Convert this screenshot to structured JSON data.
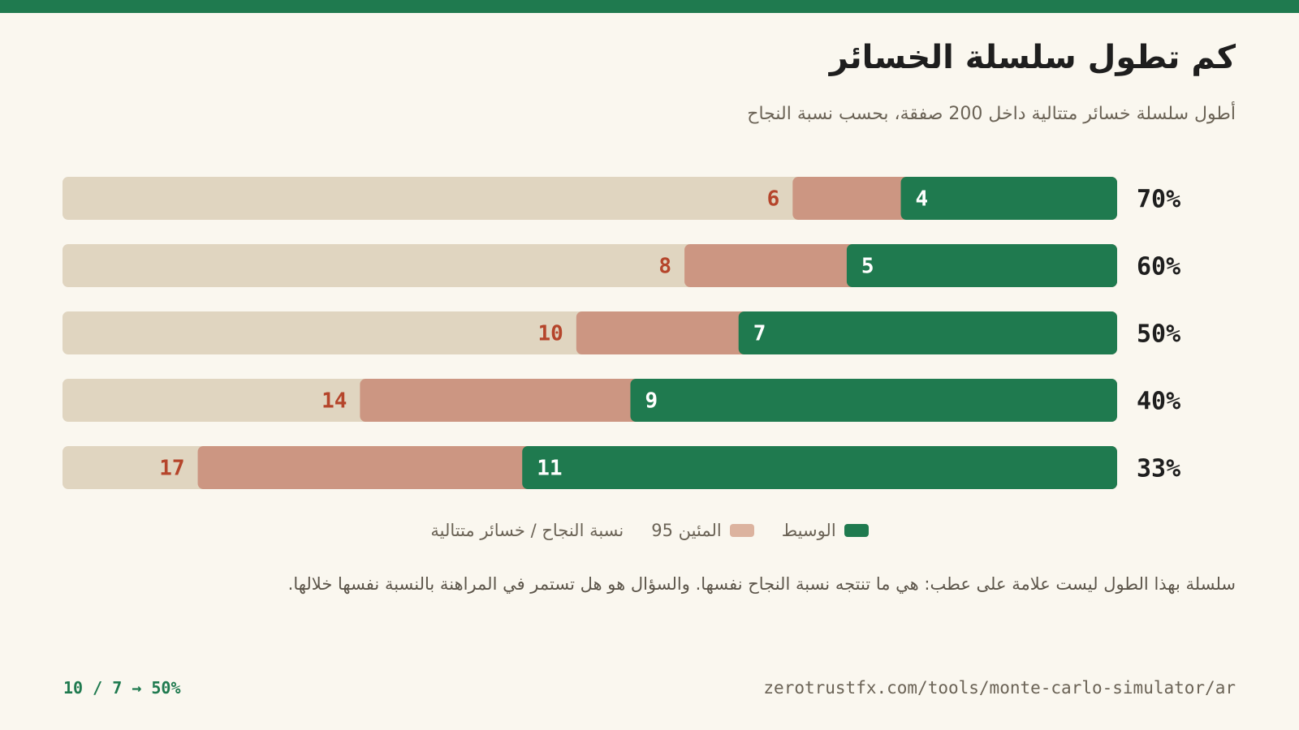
{
  "title": "كم تطول سلسلة الخسائر",
  "subtitle": "أطول سلسلة خسائر متتالية داخل 200 صفقة، بحسب نسبة النجاح",
  "legend": {
    "median_label": "الوسيط",
    "p95_label": "المئين 95",
    "axis_note": "نسبة النجاح / خسائر متتالية"
  },
  "note": "سلسلة بهذا الطول ليست علامة على عطب: هي ما تنتجه نسبة النجاح نفسها. والسؤال هو هل تستمر في المراهنة بالنسبة نفسها خلالها.",
  "footer": {
    "page": "10 / 7 → 50%",
    "url": "zerotrustfx.com/tools/monte-carlo-simulator/ar"
  },
  "colors": {
    "median": "#1f7a4f",
    "p95": "#cc9682",
    "track": "#e0d5c0",
    "p95_text": "#b5452b",
    "accent": "#1f7a4f"
  },
  "chart_data": {
    "type": "bar",
    "orientation": "horizontal",
    "direction": "right-to-left",
    "categories": [
      "70%",
      "60%",
      "50%",
      "40%",
      "33%"
    ],
    "series": [
      {
        "name": "الوسيط",
        "values": [
          4,
          5,
          7,
          9,
          11
        ]
      },
      {
        "name": "المئين 95",
        "values": [
          6,
          8,
          10,
          14,
          17
        ]
      }
    ],
    "xlim": [
      0,
      19.5
    ],
    "legend_position": "bottom"
  }
}
